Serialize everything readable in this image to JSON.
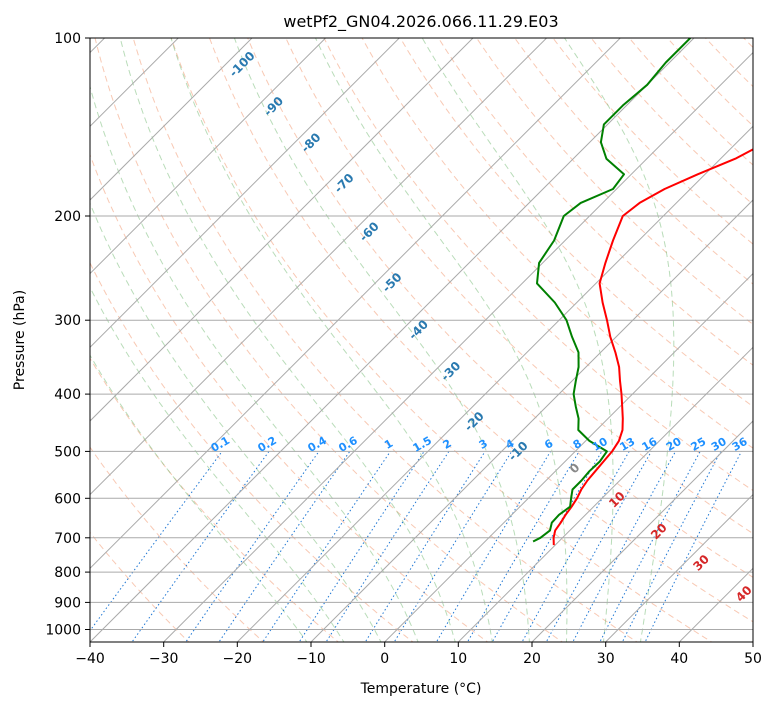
{
  "chart_data": {
    "type": "line",
    "subtype": "skew-t log-p diagram",
    "title": "wetPf2_GN04.2026.066.11.29.E03",
    "xlabel": "Temperature (°C)",
    "ylabel": "Pressure (hPa)",
    "xlim": [
      -40,
      50
    ],
    "ylim": [
      1050,
      100
    ],
    "x_ticks": [
      -40,
      -30,
      -20,
      -10,
      0,
      10,
      20,
      30,
      40,
      50
    ],
    "x_tick_labels": [
      "−40",
      "−30",
      "−20",
      "−10",
      "0",
      "10",
      "20",
      "30",
      "40",
      "50"
    ],
    "y_ticks": [
      100,
      200,
      300,
      400,
      500,
      600,
      700,
      800,
      900,
      1000
    ],
    "y_tick_labels": [
      "100",
      "200",
      "300",
      "400",
      "500",
      "600",
      "700",
      "800",
      "900",
      "1000"
    ],
    "grid": true,
    "series": [
      {
        "name": "Temperature",
        "color": "#ff0000",
        "points": [
          [
            720,
            9.8
          ],
          [
            700,
            8.8
          ],
          [
            680,
            8.0
          ],
          [
            660,
            7.7
          ],
          [
            640,
            7.3
          ],
          [
            620,
            7.0
          ],
          [
            600,
            6.6
          ],
          [
            580,
            6.0
          ],
          [
            560,
            5.6
          ],
          [
            540,
            5.4
          ],
          [
            520,
            5.2
          ],
          [
            500,
            5.0
          ],
          [
            480,
            4.5
          ],
          [
            460,
            3.5
          ],
          [
            440,
            2.0
          ],
          [
            420,
            0.3
          ],
          [
            400,
            -1.5
          ],
          [
            380,
            -3.5
          ],
          [
            360,
            -5.5
          ],
          [
            340,
            -8.0
          ],
          [
            320,
            -10.8
          ],
          [
            300,
            -13.5
          ],
          [
            280,
            -16.5
          ],
          [
            260,
            -19.5
          ],
          [
            240,
            -21.5
          ],
          [
            220,
            -23.5
          ],
          [
            200,
            -25.5
          ],
          [
            190,
            -25.0
          ],
          [
            180,
            -23.5
          ],
          [
            170,
            -21.0
          ],
          [
            160,
            -18.0
          ],
          [
            150,
            -16.0
          ],
          [
            140,
            -17.0
          ],
          [
            130,
            -19.0
          ],
          [
            120,
            -20.5
          ],
          [
            110,
            -21.0
          ],
          [
            100,
            -22.0
          ]
        ]
      },
      {
        "name": "Dewpoint",
        "color": "#008000",
        "points": [
          [
            710,
            6.5
          ],
          [
            700,
            7.0
          ],
          [
            680,
            7.3
          ],
          [
            660,
            6.5
          ],
          [
            640,
            6.4
          ],
          [
            620,
            6.8
          ],
          [
            600,
            5.8
          ],
          [
            580,
            4.8
          ],
          [
            560,
            4.8
          ],
          [
            540,
            4.6
          ],
          [
            520,
            4.7
          ],
          [
            500,
            4.3
          ],
          [
            480,
            0.5
          ],
          [
            460,
            -2.5
          ],
          [
            440,
            -4.0
          ],
          [
            420,
            -6.0
          ],
          [
            400,
            -8.0
          ],
          [
            380,
            -9.5
          ],
          [
            360,
            -11.0
          ],
          [
            340,
            -13.0
          ],
          [
            320,
            -16.0
          ],
          [
            300,
            -19.0
          ],
          [
            280,
            -23.0
          ],
          [
            260,
            -28.0
          ],
          [
            240,
            -30.5
          ],
          [
            220,
            -31.5
          ],
          [
            200,
            -33.5
          ],
          [
            190,
            -33.0
          ],
          [
            180,
            -30.5
          ],
          [
            170,
            -31.0
          ],
          [
            160,
            -35.5
          ],
          [
            150,
            -38.5
          ],
          [
            140,
            -40.5
          ],
          [
            130,
            -40.5
          ],
          [
            120,
            -40.0
          ],
          [
            110,
            -40.5
          ],
          [
            100,
            -40.5
          ]
        ]
      }
    ],
    "reference_lines": {
      "dry_adiabats_theta_C": [
        -30,
        -20,
        -10,
        0,
        10,
        20,
        30,
        40,
        50,
        60,
        70,
        80,
        90,
        100,
        110,
        120,
        130,
        140,
        150,
        160,
        170,
        180,
        190
      ],
      "moist_adiabats_C": [
        -10,
        -5,
        0,
        5,
        10,
        15,
        20,
        25,
        30,
        35
      ],
      "mixing_ratio_g_per_kg": [
        0.1,
        0.2,
        0.4,
        0.6,
        1,
        1.5,
        2,
        3,
        4,
        6,
        8,
        10,
        13,
        16,
        20,
        25,
        30,
        36
      ],
      "mixing_ratio_labels": [
        "0.1",
        "0.2",
        "0.4",
        "0.6",
        "1",
        "1.5",
        "2",
        "3",
        "4",
        "6",
        "8",
        "10",
        "13",
        "16",
        "20",
        "25",
        "30",
        "36"
      ],
      "isotherm_labels_blue": [
        "-100",
        "-90",
        "-80",
        "-70",
        "-60",
        "-50",
        "-40",
        "-30",
        "-20",
        "-10"
      ],
      "isotherm_labels_gray": [
        "0"
      ],
      "isotherm_labels_red": [
        "10",
        "20",
        "30",
        "40"
      ]
    }
  }
}
